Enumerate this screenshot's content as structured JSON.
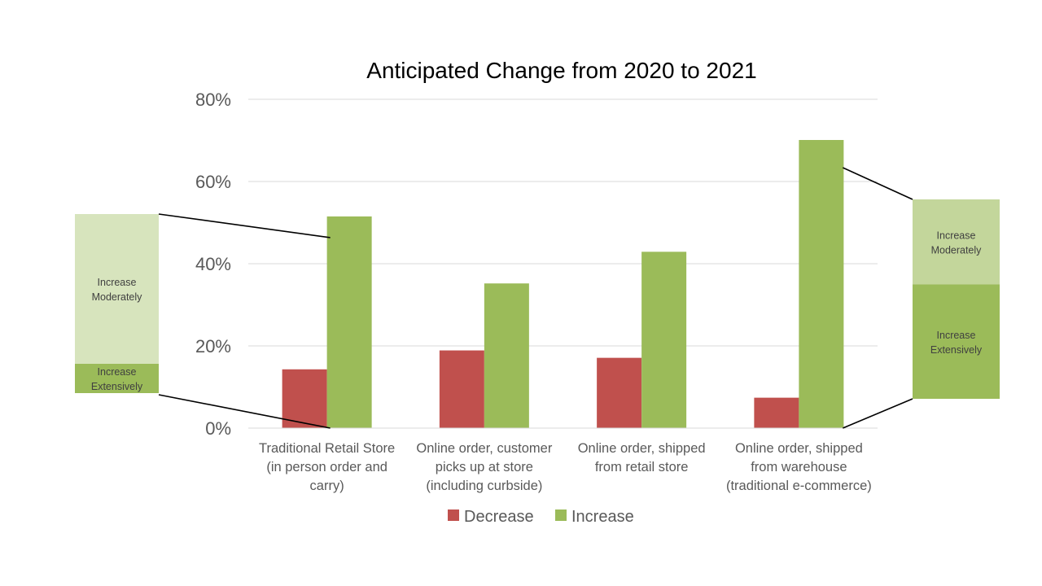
{
  "chart_data": {
    "type": "bar",
    "title": "Anticipated Change from 2020 to 2021",
    "categories": [
      [
        "Traditional Retail Store",
        "(in person order and",
        "carry)"
      ],
      [
        "Online order, customer",
        "picks up at store",
        "(including curbside)"
      ],
      [
        "Online order, shipped",
        "from retail store"
      ],
      [
        "Online order, shipped",
        "from warehouse",
        "(traditional e-commerce)"
      ]
    ],
    "series": [
      {
        "name": "Decrease",
        "values": [
          14.3,
          18.9,
          17.1,
          7.4
        ],
        "color": "#c0504d"
      },
      {
        "name": "Increase",
        "values": [
          51.5,
          35.2,
          42.9,
          70.1
        ],
        "color": "#9bbb59"
      }
    ],
    "ylim": [
      0,
      80
    ],
    "yticks": [
      "0%",
      "20%",
      "40%",
      "60%",
      "80%"
    ],
    "ytick_values": [
      0,
      20,
      40,
      60,
      80
    ],
    "grid": true,
    "legend_position": "bottom",
    "breakouts": [
      {
        "category_index": 0,
        "segments": [
          {
            "label": [
              "Increase",
              "Extensively"
            ],
            "share": 7.2,
            "color": "#9bbb59"
          },
          {
            "label": [
              "Increase",
              "Moderately"
            ],
            "share": 36.8,
            "color": "#d7e4bd"
          }
        ]
      },
      {
        "category_index": 3,
        "segments": [
          {
            "label": [
              "Increase",
              "Extensively"
            ],
            "share": 28.1,
            "color": "#9bbb59"
          },
          {
            "label": [
              "Increase",
              "Moderately"
            ],
            "share": 20.9,
            "color": "#c3d69b"
          }
        ]
      }
    ]
  }
}
